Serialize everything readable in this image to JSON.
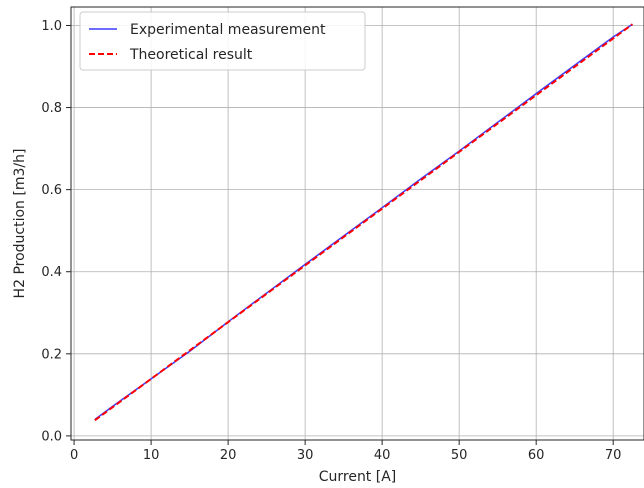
{
  "chart_data": {
    "type": "line",
    "xlabel": "Current [A]",
    "ylabel": "H2 Production [m3/h]",
    "xlim": [
      -0.4,
      74.0
    ],
    "ylim": [
      -0.01,
      1.045
    ],
    "xticks": [
      0,
      10,
      20,
      30,
      40,
      50,
      60,
      70
    ],
    "yticks": [
      0.0,
      0.2,
      0.4,
      0.6,
      0.8,
      1.0
    ],
    "xtick_labels": [
      "0",
      "10",
      "20",
      "30",
      "40",
      "50",
      "60",
      "70"
    ],
    "ytick_labels": [
      "0.0",
      "0.2",
      "0.4",
      "0.6",
      "0.8",
      "1.0"
    ],
    "grid": true,
    "legend_position": "top-left",
    "series": [
      {
        "name": "Experimental measurement",
        "color": "#3b3bff",
        "style": "solid",
        "x": [
          2.7,
          5,
          10,
          15,
          20,
          25,
          30,
          35,
          40,
          45,
          50,
          55,
          60,
          65,
          70,
          72.5
        ],
        "y": [
          0.04,
          0.072,
          0.139,
          0.206,
          0.278,
          0.348,
          0.418,
          0.487,
          0.556,
          0.626,
          0.694,
          0.764,
          0.834,
          0.903,
          0.972,
          1.003
        ]
      },
      {
        "name": "Theoretical result",
        "color": "#ff0000",
        "style": "dashed",
        "x": [
          2.7,
          72.5
        ],
        "y": [
          0.038,
          1.003
        ]
      }
    ]
  }
}
